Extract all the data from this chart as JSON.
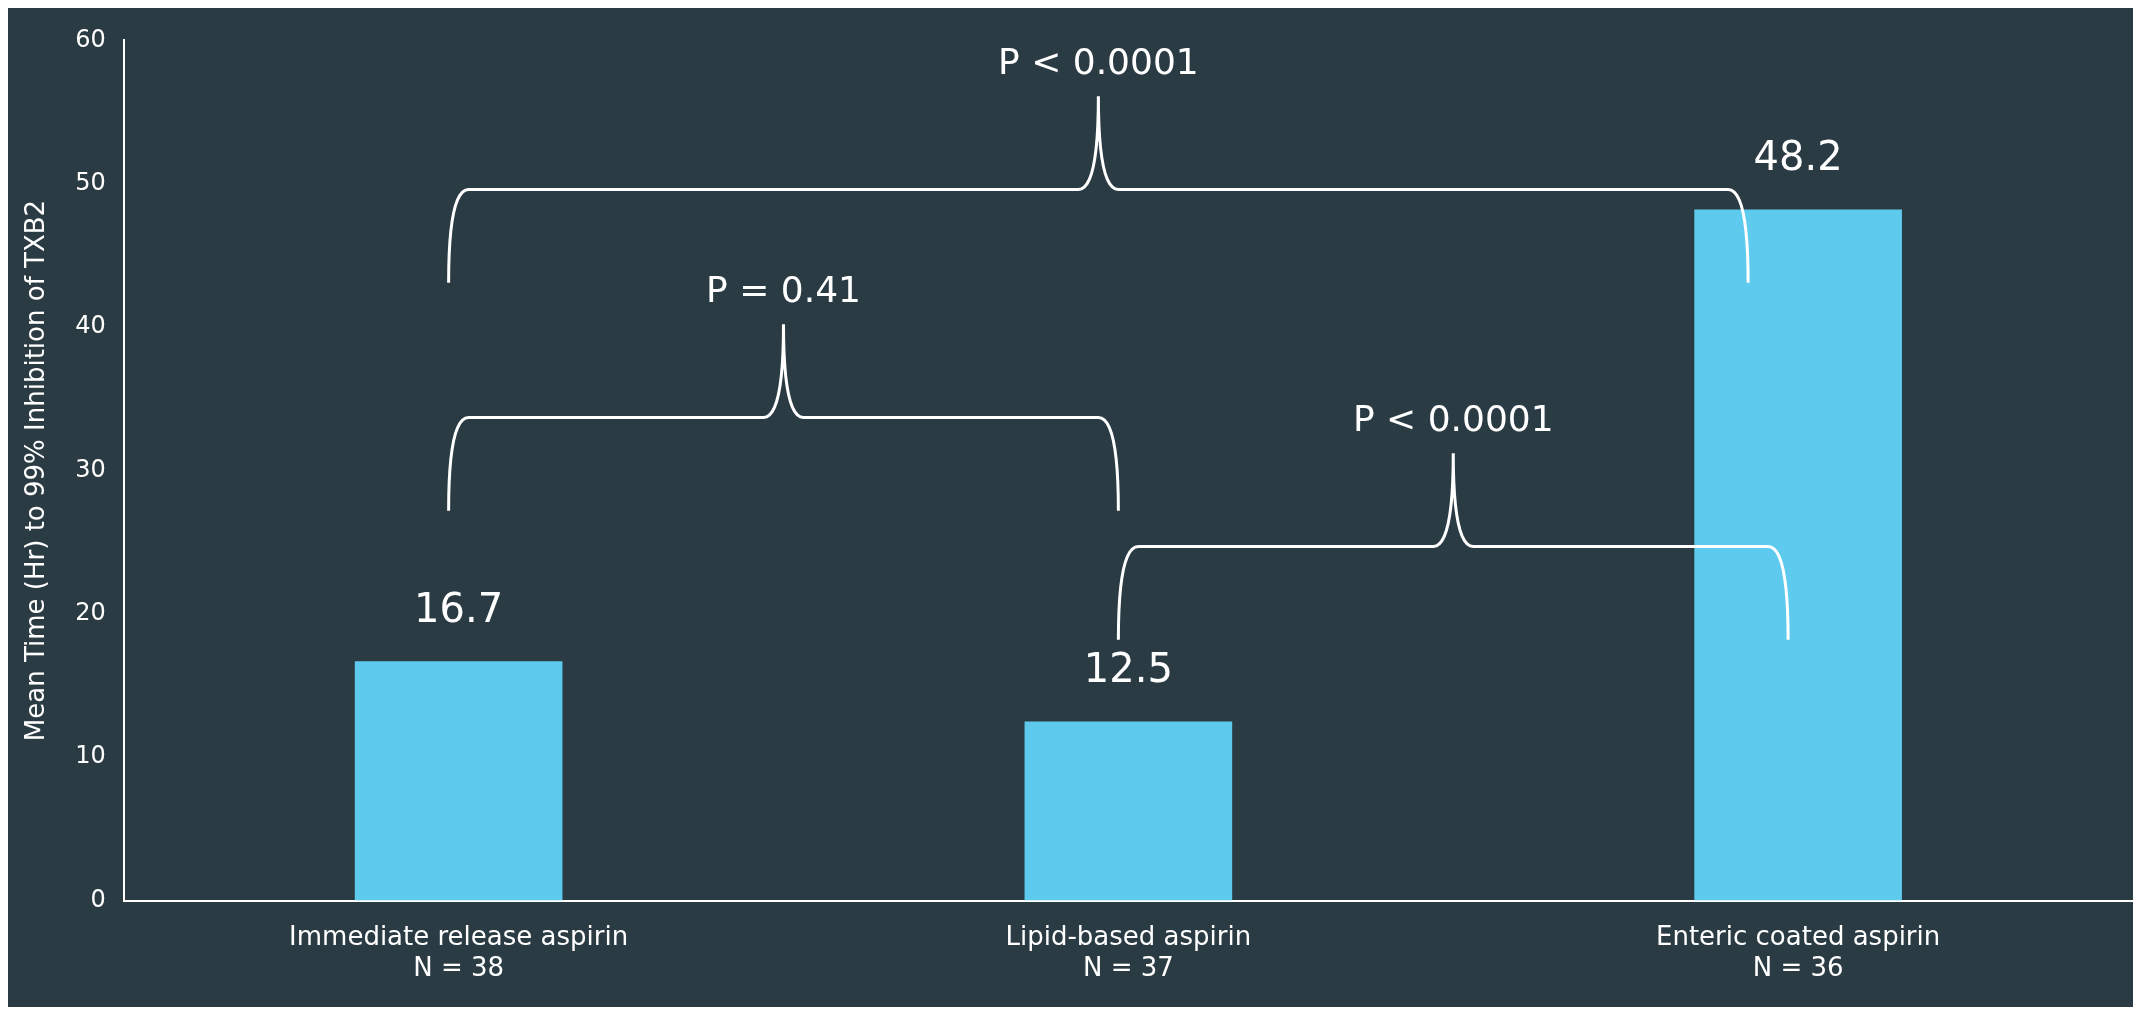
{
  "chart_data": {
    "type": "bar",
    "ylabel": "Mean Time (Hr) to 99% Inhibition of TXB2",
    "categories": [
      "Immediate release aspirin\nN = 38",
      "Lipid-based aspirin\nN = 37",
      "Enteric coated aspirin\nN = 36"
    ],
    "values": [
      16.7,
      12.5,
      48.2
    ],
    "color": "#5ecbee",
    "ylim": [
      0,
      60
    ],
    "yticks": [
      0,
      10,
      20,
      30,
      40,
      50,
      60
    ],
    "grid": false,
    "legend": false,
    "data_labels": true,
    "annotations": [
      "P < 0.0001",
      "P = 0.41",
      "P < 0.0001"
    ]
  }
}
